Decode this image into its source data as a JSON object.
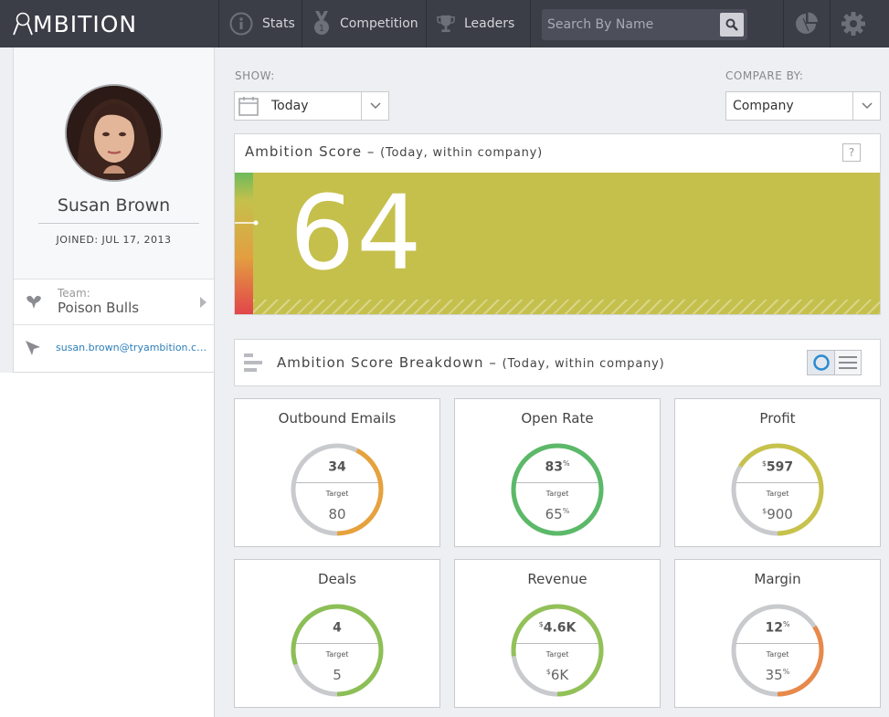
{
  "app": {
    "logo_text": "MBITION"
  },
  "nav": {
    "items": [
      {
        "label": "Stats",
        "icon": "info-icon"
      },
      {
        "label": "Competition",
        "icon": "medal-icon"
      },
      {
        "label": "Leaders",
        "icon": "trophy-icon"
      }
    ],
    "search_placeholder": "Search By Name"
  },
  "profile": {
    "name": "Susan Brown",
    "joined": "JOINED: JUL 17, 2013",
    "team_label": "Team:",
    "team_name": "Poison Bulls",
    "email": "susan.brown@tryambition.com"
  },
  "controls": {
    "show_label": "SHOW:",
    "show_value": "Today",
    "compare_label": "COMPARE BY:",
    "compare_value": "Company"
  },
  "score": {
    "title": "Ambition Score",
    "context": "(Today, within company)",
    "help": "?",
    "value": "64",
    "color": "#c5c04c"
  },
  "breakdown": {
    "title": "Ambition Score Breakdown",
    "context": "(Today, within company)",
    "target_label": "Target",
    "cards": [
      {
        "title": "Outbound Emails",
        "value": "34",
        "prefix": "",
        "suffix": "",
        "target": "80",
        "tprefix": "",
        "tsuffix": "",
        "progress": 0.425,
        "color": "#e6a23c"
      },
      {
        "title": "Open Rate",
        "value": "83",
        "prefix": "",
        "suffix": "%",
        "target": "65",
        "tprefix": "",
        "tsuffix": "%",
        "progress": 1.0,
        "color": "#5bb968"
      },
      {
        "title": "Profit",
        "value": "597",
        "prefix": "$",
        "suffix": "",
        "target": "900",
        "tprefix": "$",
        "tsuffix": "",
        "progress": 0.66,
        "color": "#c7c24b"
      },
      {
        "title": "Deals",
        "value": "4",
        "prefix": "",
        "suffix": "",
        "target": "5",
        "tprefix": "",
        "tsuffix": "",
        "progress": 0.8,
        "color": "#8cbf55"
      },
      {
        "title": "Revenue",
        "value": "4.6K",
        "prefix": "$",
        "suffix": "",
        "target": "6K",
        "tprefix": "$",
        "tsuffix": "",
        "progress": 0.77,
        "color": "#92c158"
      },
      {
        "title": "Margin",
        "value": "12",
        "prefix": "",
        "suffix": "%",
        "target": "35",
        "tprefix": "",
        "tsuffix": "%",
        "progress": 0.34,
        "color": "#e8894a"
      }
    ]
  }
}
